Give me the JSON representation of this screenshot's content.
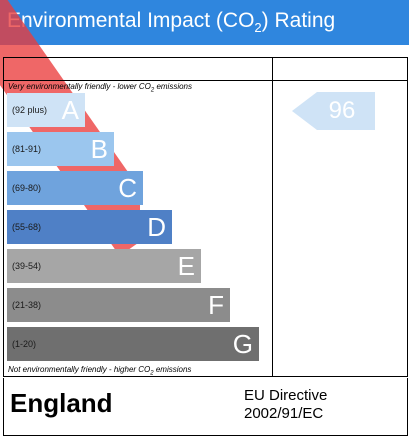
{
  "header": {
    "title_before": "Environmental Impact (CO",
    "title_sub": "2",
    "title_after": ") Rating"
  },
  "captions": {
    "top_before": "Very environmentally friendly - lower CO",
    "top_sub": "2",
    "top_after": " emissions",
    "bottom_before": "Not environmentally friendly - higher CO",
    "bottom_sub": "2",
    "bottom_after": " emissions"
  },
  "chart_data": {
    "type": "bar",
    "title": "Environmental Impact (CO2) Rating",
    "categories": [
      "A",
      "B",
      "C",
      "D",
      "E",
      "F",
      "G"
    ],
    "ranges": [
      "(92 plus)",
      "(81-91)",
      "(69-80)",
      "(55-68)",
      "(39-54)",
      "(21-38)",
      "(1-20)"
    ],
    "colors": [
      "#cfe3f6",
      "#9bc6ee",
      "#6fa3dd",
      "#4f80c6",
      "#a6a6a6",
      "#8c8c8c",
      "#6f6f6f"
    ],
    "rating": {
      "value": 96,
      "band": "A",
      "color": "#cfe3f6"
    }
  },
  "footer": {
    "country": "England",
    "directive_line1": "EU Directive",
    "directive_line2": "2002/91/EC"
  }
}
